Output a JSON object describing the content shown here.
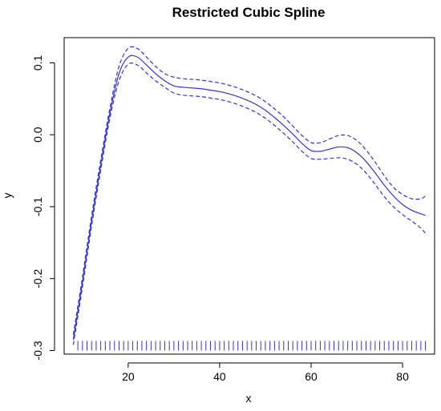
{
  "chart_data": {
    "type": "line",
    "title": "Restricted Cubic Spline",
    "xlabel": "x",
    "ylabel": "y",
    "xlim": [
      6,
      87
    ],
    "ylim": [
      -0.305,
      0.135
    ],
    "x_ticks": [
      20,
      40,
      60,
      80
    ],
    "x_tick_labels": [
      "20",
      "40",
      "60",
      "80"
    ],
    "y_ticks": [
      -0.3,
      -0.2,
      -0.1,
      0.0,
      0.1
    ],
    "y_tick_labels": [
      "-0.3",
      "-0.2",
      "-0.1",
      "0.0",
      "0.1"
    ],
    "grid": false,
    "colors": {
      "series": "#3333dd",
      "rug": "#3333dd",
      "axis": "#000000"
    },
    "x": [
      8,
      10,
      12,
      14,
      16,
      18,
      20,
      22,
      24,
      26,
      28,
      30,
      32,
      34,
      36,
      38,
      40,
      42,
      44,
      46,
      48,
      50,
      52,
      54,
      56,
      58,
      60,
      62,
      64,
      66,
      68,
      70,
      72,
      74,
      76,
      78,
      80,
      82,
      84,
      85
    ],
    "series": [
      {
        "style": "solid",
        "values": [
          -0.285,
          -0.205,
          -0.12,
          -0.042,
          0.03,
          0.085,
          0.108,
          0.108,
          0.097,
          0.085,
          0.075,
          0.068,
          0.066,
          0.065,
          0.064,
          0.062,
          0.06,
          0.057,
          0.053,
          0.048,
          0.042,
          0.034,
          0.024,
          0.013,
          0.001,
          -0.012,
          -0.022,
          -0.023,
          -0.02,
          -0.017,
          -0.018,
          -0.025,
          -0.037,
          -0.053,
          -0.07,
          -0.085,
          -0.097,
          -0.105,
          -0.11,
          -0.112
        ]
      },
      {
        "style": "dashed",
        "values": [
          -0.278,
          -0.198,
          -0.113,
          -0.035,
          0.037,
          0.095,
          0.12,
          0.12,
          0.108,
          0.095,
          0.085,
          0.08,
          0.078,
          0.077,
          0.076,
          0.074,
          0.072,
          0.069,
          0.065,
          0.06,
          0.054,
          0.046,
          0.036,
          0.025,
          0.012,
          -0.001,
          -0.011,
          -0.011,
          -0.006,
          -0.001,
          -0.001,
          -0.008,
          -0.021,
          -0.038,
          -0.057,
          -0.073,
          -0.083,
          -0.089,
          -0.089,
          -0.085
        ]
      },
      {
        "style": "dashed",
        "values": [
          -0.292,
          -0.212,
          -0.127,
          -0.049,
          0.023,
          0.075,
          0.098,
          0.097,
          0.086,
          0.075,
          0.066,
          0.058,
          0.055,
          0.054,
          0.053,
          0.051,
          0.049,
          0.046,
          0.042,
          0.037,
          0.031,
          0.023,
          0.013,
          0.002,
          -0.01,
          -0.023,
          -0.033,
          -0.034,
          -0.033,
          -0.032,
          -0.034,
          -0.041,
          -0.053,
          -0.069,
          -0.086,
          -0.1,
          -0.111,
          -0.12,
          -0.13,
          -0.137
        ]
      }
    ],
    "rug": {
      "y": -0.3,
      "start": 9,
      "end": 85,
      "step": 1
    }
  }
}
